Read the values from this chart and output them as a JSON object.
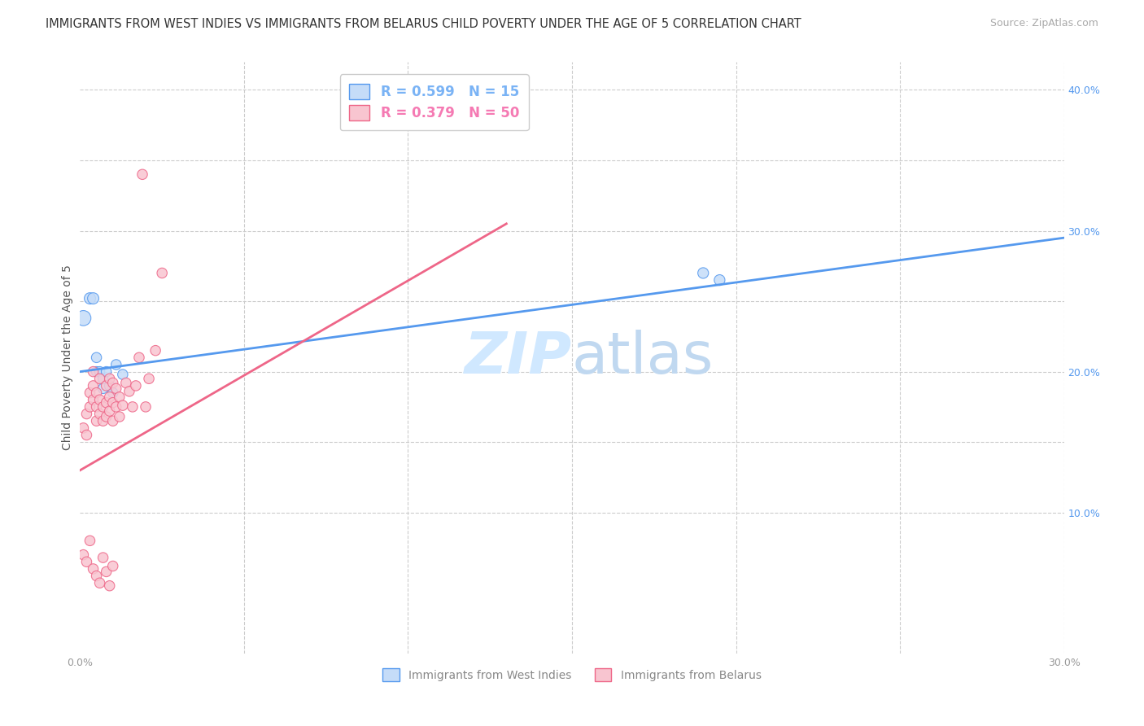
{
  "title": "IMMIGRANTS FROM WEST INDIES VS IMMIGRANTS FROM BELARUS CHILD POVERTY UNDER THE AGE OF 5 CORRELATION CHART",
  "source": "Source: ZipAtlas.com",
  "ylabel": "Child Poverty Under the Age of 5",
  "xlim": [
    0.0,
    0.3
  ],
  "ylim": [
    0.0,
    0.42
  ],
  "grid_color": "#cccccc",
  "background_color": "#ffffff",
  "watermark_zip": "ZIP",
  "watermark_atlas": "atlas",
  "legend_R_entries": [
    {
      "label": "R = 0.599   N = 15",
      "color": "#7ab3f5"
    },
    {
      "label": "R = 0.379   N = 50",
      "color": "#f57ab3"
    }
  ],
  "blue_scatter_x": [
    0.001,
    0.003,
    0.004,
    0.005,
    0.005,
    0.006,
    0.007,
    0.007,
    0.008,
    0.009,
    0.01,
    0.011,
    0.013,
    0.19,
    0.195
  ],
  "blue_scatter_y": [
    0.238,
    0.252,
    0.252,
    0.2,
    0.21,
    0.2,
    0.195,
    0.188,
    0.2,
    0.19,
    0.185,
    0.205,
    0.198,
    0.27,
    0.265
  ],
  "blue_scatter_sizes": [
    180,
    100,
    100,
    80,
    80,
    80,
    80,
    80,
    80,
    80,
    80,
    80,
    80,
    90,
    90
  ],
  "pink_scatter_x": [
    0.001,
    0.002,
    0.002,
    0.003,
    0.003,
    0.004,
    0.004,
    0.004,
    0.005,
    0.005,
    0.005,
    0.006,
    0.006,
    0.006,
    0.007,
    0.007,
    0.008,
    0.008,
    0.008,
    0.009,
    0.009,
    0.009,
    0.01,
    0.01,
    0.01,
    0.011,
    0.011,
    0.012,
    0.012,
    0.013,
    0.014,
    0.015,
    0.016,
    0.017,
    0.018,
    0.019,
    0.02,
    0.021,
    0.023,
    0.025,
    0.001,
    0.002,
    0.003,
    0.004,
    0.005,
    0.006,
    0.007,
    0.008,
    0.009,
    0.01
  ],
  "pink_scatter_y": [
    0.16,
    0.155,
    0.17,
    0.175,
    0.185,
    0.18,
    0.19,
    0.2,
    0.165,
    0.175,
    0.185,
    0.17,
    0.18,
    0.195,
    0.175,
    0.165,
    0.168,
    0.178,
    0.19,
    0.172,
    0.182,
    0.195,
    0.165,
    0.178,
    0.192,
    0.175,
    0.188,
    0.168,
    0.182,
    0.176,
    0.192,
    0.186,
    0.175,
    0.19,
    0.21,
    0.34,
    0.175,
    0.195,
    0.215,
    0.27,
    0.07,
    0.065,
    0.08,
    0.06,
    0.055,
    0.05,
    0.068,
    0.058,
    0.048,
    0.062
  ],
  "pink_scatter_sizes": [
    80,
    80,
    80,
    80,
    80,
    80,
    80,
    80,
    80,
    80,
    80,
    80,
    80,
    80,
    80,
    80,
    80,
    80,
    80,
    80,
    80,
    80,
    80,
    80,
    80,
    80,
    80,
    80,
    80,
    80,
    80,
    80,
    80,
    80,
    80,
    80,
    80,
    80,
    80,
    80,
    80,
    80,
    80,
    80,
    80,
    80,
    80,
    80,
    80,
    80
  ],
  "blue_line_x": [
    0.0,
    0.3
  ],
  "blue_line_y": [
    0.2,
    0.295
  ],
  "pink_line_x": [
    0.0,
    0.13
  ],
  "pink_line_y": [
    0.13,
    0.305
  ],
  "blue_color": "#5599ee",
  "blue_scatter_color": "#c5dcf8",
  "pink_color": "#ee6688",
  "pink_scatter_color": "#f8c5d0",
  "title_fontsize": 10.5,
  "axis_label_fontsize": 10,
  "tick_fontsize": 9,
  "legend_fontsize": 12,
  "watermark_fontsize_zip": 52,
  "watermark_fontsize_atlas": 52,
  "watermark_color": "#ddeeff",
  "source_fontsize": 9,
  "right_yticks": [
    0.1,
    0.2,
    0.3,
    0.4
  ],
  "right_yticklabels": [
    "10.0%",
    "20.0%",
    "30.0%",
    "40.0%"
  ],
  "xticks": [
    0.0,
    0.05,
    0.1,
    0.15,
    0.2,
    0.25,
    0.3
  ],
  "xticklabels": [
    "0.0%",
    "",
    "",
    "",
    "",
    "",
    "30.0%"
  ]
}
